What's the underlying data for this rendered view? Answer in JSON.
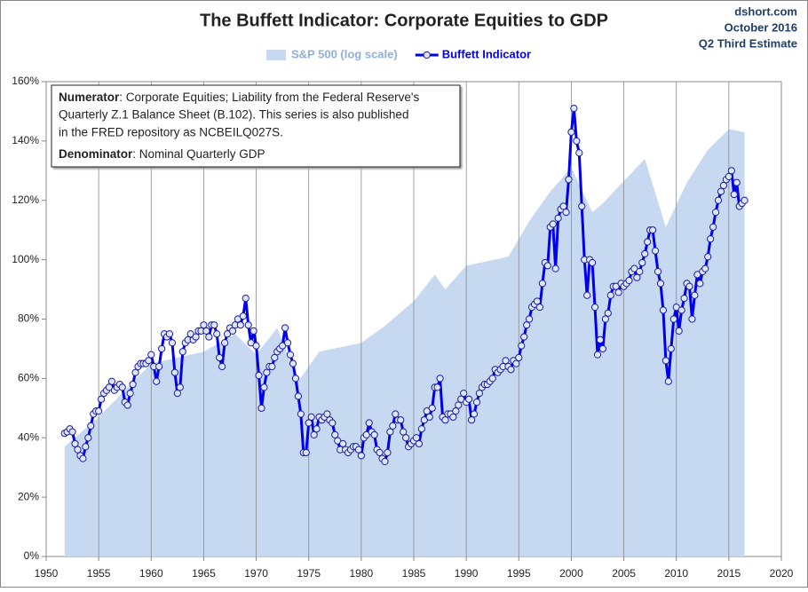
{
  "chart_data": {
    "type": "line",
    "title": "The Buffett Indicator: Corporate Equities to GDP",
    "source_lines": [
      "dshort.com",
      "October 2016",
      "Q2 Third Estimate"
    ],
    "annotation": {
      "numerator_label": "Numerator",
      "numerator_lines": [
        ": Corporate Equities; Liability from the Federal Reserve's",
        "Quarterly Z.1 Balance Sheet (B.102). This series is also published",
        "in the FRED repository as NCBEILQ027S."
      ],
      "denominator_label": "Denominator",
      "denominator_text": ": Nominal Quarterly GDP"
    },
    "xlim": [
      1950,
      2020
    ],
    "xticks": [
      1950,
      1955,
      1960,
      1965,
      1970,
      1975,
      1980,
      1985,
      1990,
      1995,
      2000,
      2005,
      2010,
      2015,
      2020
    ],
    "ylim": [
      0,
      160
    ],
    "yticks": [
      {
        "value": 0,
        "label": "0%"
      },
      {
        "value": 20,
        "label": "20%"
      },
      {
        "value": 40,
        "label": "40%"
      },
      {
        "value": 60,
        "label": "60%"
      },
      {
        "value": 80,
        "label": "80%"
      },
      {
        "value": 100,
        "label": "100%"
      },
      {
        "value": 120,
        "label": "120%"
      },
      {
        "value": 140,
        "label": "140%"
      },
      {
        "value": 160,
        "label": "160%"
      }
    ],
    "grid": "x",
    "legend": "top",
    "series": [
      {
        "name": "S&P 500 (log scale)",
        "kind": "area",
        "color": "#c6d9f1",
        "x": [
          1951.75,
          1955,
          1960,
          1965,
          1968,
          1970,
          1972,
          1974,
          1976,
          1980,
          1982,
          1985,
          1987,
          1988,
          1990,
          1994,
          1996,
          1998,
          2000,
          2002,
          2003,
          2007,
          2009,
          2011,
          2013,
          2015,
          2016.5
        ],
        "values": [
          37,
          47,
          65,
          69,
          75,
          68,
          77,
          59,
          69,
          72,
          77,
          86,
          95,
          90,
          98,
          101,
          113,
          123,
          131,
          116,
          119,
          134,
          111,
          126,
          137,
          144,
          143
        ]
      },
      {
        "name": "Buffett Indicator",
        "kind": "line",
        "color": "#0000ee",
        "x": [
          1951.75,
          1952,
          1952.25,
          1952.5,
          1952.75,
          1953,
          1953.25,
          1953.5,
          1953.75,
          1954,
          1954.25,
          1954.5,
          1954.75,
          1955,
          1955.25,
          1955.5,
          1955.75,
          1956,
          1956.25,
          1956.5,
          1956.75,
          1957,
          1957.25,
          1957.5,
          1957.75,
          1958,
          1958.25,
          1958.5,
          1958.75,
          1959,
          1959.25,
          1959.5,
          1959.75,
          1960,
          1960.25,
          1960.5,
          1960.75,
          1961,
          1961.25,
          1961.5,
          1961.75,
          1962,
          1962.25,
          1962.5,
          1962.75,
          1963,
          1963.25,
          1963.5,
          1963.75,
          1964,
          1964.25,
          1964.5,
          1964.75,
          1965,
          1965.25,
          1965.5,
          1965.75,
          1966,
          1966.25,
          1966.5,
          1966.75,
          1967,
          1967.25,
          1967.5,
          1967.75,
          1968,
          1968.25,
          1968.5,
          1968.75,
          1969,
          1969.25,
          1969.5,
          1969.75,
          1970,
          1970.25,
          1970.5,
          1970.75,
          1971,
          1971.25,
          1971.5,
          1971.75,
          1972,
          1972.25,
          1972.5,
          1972.75,
          1973,
          1973.25,
          1973.5,
          1973.75,
          1974,
          1974.25,
          1974.5,
          1974.75,
          1975,
          1975.25,
          1975.5,
          1975.75,
          1976,
          1976.25,
          1976.5,
          1976.75,
          1977,
          1977.25,
          1977.5,
          1977.75,
          1978,
          1978.25,
          1978.5,
          1978.75,
          1979,
          1979.25,
          1979.5,
          1979.75,
          1980,
          1980.25,
          1980.5,
          1980.75,
          1981,
          1981.25,
          1981.5,
          1981.75,
          1982,
          1982.25,
          1982.5,
          1982.75,
          1983,
          1983.25,
          1983.5,
          1983.75,
          1984,
          1984.25,
          1984.5,
          1984.75,
          1985,
          1985.25,
          1985.5,
          1985.75,
          1986,
          1986.25,
          1986.5,
          1986.75,
          1987,
          1987.25,
          1987.5,
          1987.75,
          1988,
          1988.25,
          1988.5,
          1988.75,
          1989,
          1989.25,
          1989.5,
          1989.75,
          1990,
          1990.25,
          1990.5,
          1990.75,
          1991,
          1991.25,
          1991.5,
          1991.75,
          1992,
          1992.25,
          1992.5,
          1992.75,
          1993,
          1993.25,
          1993.5,
          1993.75,
          1994,
          1994.25,
          1994.5,
          1994.75,
          1995,
          1995.25,
          1995.5,
          1995.75,
          1996,
          1996.25,
          1996.5,
          1996.75,
          1997,
          1997.25,
          1997.5,
          1997.75,
          1998,
          1998.25,
          1998.5,
          1998.75,
          1999,
          1999.25,
          1999.5,
          1999.75,
          2000,
          2000.25,
          2000.5,
          2000.75,
          2001,
          2001.25,
          2001.5,
          2001.75,
          2002,
          2002.25,
          2002.5,
          2002.75,
          2003,
          2003.25,
          2003.5,
          2003.75,
          2004,
          2004.25,
          2004.5,
          2004.75,
          2005,
          2005.25,
          2005.5,
          2005.75,
          2006,
          2006.25,
          2006.5,
          2006.75,
          2007,
          2007.25,
          2007.5,
          2007.75,
          2008,
          2008.25,
          2008.5,
          2008.75,
          2009,
          2009.25,
          2009.5,
          2009.75,
          2010,
          2010.25,
          2010.5,
          2010.75,
          2011,
          2011.25,
          2011.5,
          2011.75,
          2012,
          2012.25,
          2012.5,
          2012.75,
          2013,
          2013.25,
          2013.5,
          2013.75,
          2014,
          2014.25,
          2014.5,
          2014.75,
          2015,
          2015.25,
          2015.5,
          2015.75,
          2016,
          2016.25,
          2016.5
        ],
        "values": [
          41.5,
          42,
          43,
          42,
          38,
          36,
          34,
          33,
          37,
          40,
          44,
          48,
          49,
          49,
          53,
          55,
          56,
          57,
          59,
          56,
          57,
          58,
          57,
          52,
          51,
          55,
          58,
          62,
          64,
          65,
          65,
          65,
          66,
          68,
          64,
          59,
          64,
          70,
          75,
          74,
          75,
          72,
          62,
          55,
          57,
          69,
          72,
          73,
          75,
          73,
          74,
          76,
          76,
          78,
          76,
          74,
          78,
          78,
          75,
          67,
          64,
          72,
          75,
          77,
          76,
          78,
          80,
          78,
          81,
          87,
          78,
          72,
          76,
          71,
          61,
          50,
          57,
          62,
          64,
          64,
          67,
          69,
          70,
          71,
          77,
          72,
          68,
          65,
          60,
          54,
          48,
          35,
          35,
          45,
          47,
          41,
          43,
          47,
          46,
          47,
          48,
          46,
          45,
          41,
          39,
          36,
          38,
          36,
          35,
          36,
          37,
          37,
          36,
          34,
          40,
          41,
          45,
          42,
          41,
          36,
          35,
          33,
          32,
          35,
          42,
          44,
          48,
          46,
          46,
          42,
          40,
          37,
          38,
          39,
          40,
          38,
          43,
          46,
          49,
          47,
          50,
          57,
          57,
          60,
          47,
          46,
          48,
          48,
          47,
          49,
          51,
          53,
          55,
          52,
          53,
          46,
          48,
          52,
          55,
          57,
          58,
          58,
          59,
          60,
          63,
          62,
          63,
          64,
          66,
          64,
          63,
          66,
          65,
          67,
          71,
          74,
          78,
          80,
          84,
          85,
          86,
          84,
          92,
          99,
          98,
          111,
          112,
          97,
          114,
          117,
          118,
          116,
          127,
          143,
          151,
          140,
          136,
          118,
          100,
          88,
          100,
          99,
          84,
          68,
          73,
          70,
          80,
          82,
          88,
          91,
          91,
          89,
          92,
          91,
          92,
          93,
          96,
          97,
          94,
          96,
          99,
          102,
          106,
          110,
          110,
          103,
          96,
          92,
          83,
          66,
          59,
          70,
          80,
          84,
          76,
          83,
          87,
          92,
          91,
          80,
          88,
          95,
          92,
          96,
          97,
          101,
          107,
          111,
          116,
          120,
          123,
          125,
          127,
          128,
          130,
          122,
          126,
          118,
          119,
          120
        ]
      }
    ]
  }
}
